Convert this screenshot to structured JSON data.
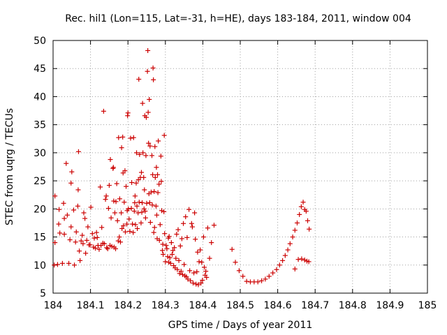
{
  "chart_data": {
    "type": "scatter",
    "title": "Rec. hil1 (Lon=115, Lat=-31, h=HE), days 183-184, 2011, window 004",
    "xlabel": "GPS time / Days of year 2011",
    "ylabel": "STEC from uqrg / TECUs",
    "xlim": [
      184,
      185
    ],
    "ylim": [
      5,
      50
    ],
    "xticks": [
      184,
      184.1,
      184.2,
      184.3,
      184.4,
      184.5,
      184.6,
      184.7,
      184.8,
      184.9,
      185
    ],
    "xtick_labels": [
      "184",
      "184.1",
      "184.2",
      "184.3",
      "184.4",
      "184.5",
      "184.6",
      "184.7",
      "184.8",
      "184.9",
      "185"
    ],
    "yticks": [
      5,
      10,
      15,
      20,
      25,
      30,
      35,
      40,
      45,
      50
    ],
    "ytick_labels": [
      "5",
      "10",
      "15",
      "20",
      "25",
      "30",
      "35",
      "40",
      "45",
      "50"
    ],
    "grid": true,
    "marker": "+",
    "color": "#cc0000",
    "series": [
      {
        "name": "STEC",
        "points": [
          [
            184.003,
            10.0
          ],
          [
            184.005,
            14.0
          ],
          [
            184.005,
            22.3
          ],
          [
            184.012,
            10.1
          ],
          [
            184.015,
            17.3
          ],
          [
            184.016,
            19.9
          ],
          [
            184.018,
            15.7
          ],
          [
            184.025,
            10.3
          ],
          [
            184.028,
            21.0
          ],
          [
            184.03,
            15.5
          ],
          [
            184.03,
            18.3
          ],
          [
            184.035,
            28.1
          ],
          [
            184.038,
            18.9
          ],
          [
            184.042,
            10.3
          ],
          [
            184.045,
            14.5
          ],
          [
            184.048,
            16.8
          ],
          [
            184.048,
            24.6
          ],
          [
            184.05,
            26.6
          ],
          [
            184.055,
            19.8
          ],
          [
            184.057,
            10.0
          ],
          [
            184.06,
            14.1
          ],
          [
            184.062,
            15.9
          ],
          [
            184.066,
            20.5
          ],
          [
            184.067,
            23.4
          ],
          [
            184.068,
            30.2
          ],
          [
            184.07,
            12.5
          ],
          [
            184.072,
            10.8
          ],
          [
            184.075,
            14.3
          ],
          [
            184.078,
            15.3
          ],
          [
            184.08,
            13.8
          ],
          [
            184.082,
            19.3
          ],
          [
            184.085,
            18.3
          ],
          [
            184.087,
            12.1
          ],
          [
            184.09,
            14.4
          ],
          [
            184.093,
            16.8
          ],
          [
            184.096,
            13.6
          ],
          [
            184.099,
            13.6
          ],
          [
            184.101,
            20.3
          ],
          [
            184.105,
            15.6
          ],
          [
            184.108,
            13.2
          ],
          [
            184.11,
            14.8
          ],
          [
            184.113,
            13.0
          ],
          [
            184.116,
            15.8
          ],
          [
            184.118,
            14.9
          ],
          [
            184.12,
            13.5
          ],
          [
            184.123,
            12.8
          ],
          [
            184.126,
            23.9
          ],
          [
            184.128,
            13.5
          ],
          [
            184.13,
            16.7
          ],
          [
            184.133,
            13.9
          ],
          [
            184.135,
            37.4
          ],
          [
            184.137,
            13.8
          ],
          [
            184.14,
            21.7
          ],
          [
            184.142,
            22.3
          ],
          [
            184.143,
            13.1
          ],
          [
            184.146,
            12.9
          ],
          [
            184.148,
            20.1
          ],
          [
            184.15,
            24.2
          ],
          [
            184.152,
            13.5
          ],
          [
            184.153,
            28.8
          ],
          [
            184.155,
            18.4
          ],
          [
            184.157,
            13.3
          ],
          [
            184.16,
            27.2
          ],
          [
            184.161,
            27.4
          ],
          [
            184.162,
            21.4
          ],
          [
            184.163,
            13.2
          ],
          [
            184.165,
            19.3
          ],
          [
            184.167,
            12.9
          ],
          [
            184.168,
            21.3
          ],
          [
            184.17,
            24.5
          ],
          [
            184.172,
            17.9
          ],
          [
            184.174,
            14.3
          ],
          [
            184.175,
            32.7
          ],
          [
            184.177,
            15.0
          ],
          [
            184.178,
            21.8
          ],
          [
            184.18,
            14.1
          ],
          [
            184.182,
            19.3
          ],
          [
            184.183,
            30.9
          ],
          [
            184.184,
            16.5
          ],
          [
            184.186,
            32.8
          ],
          [
            184.187,
            26.4
          ],
          [
            184.188,
            17.0
          ],
          [
            184.19,
            21.2
          ],
          [
            184.192,
            26.8
          ],
          [
            184.193,
            15.9
          ],
          [
            184.195,
            24.0
          ],
          [
            184.197,
            17.3
          ],
          [
            184.198,
            19.7
          ],
          [
            184.199,
            36.6
          ],
          [
            184.2,
            37.1
          ],
          [
            184.201,
            20.0
          ],
          [
            184.203,
            18.2
          ],
          [
            184.205,
            16.0
          ],
          [
            184.207,
            32.6
          ],
          [
            184.209,
            20.1
          ],
          [
            184.21,
            24.7
          ],
          [
            184.212,
            17.3
          ],
          [
            184.214,
            15.8
          ],
          [
            184.215,
            32.7
          ],
          [
            184.217,
            19.6
          ],
          [
            184.218,
            21.1
          ],
          [
            184.219,
            22.3
          ],
          [
            184.22,
            17.2
          ],
          [
            184.222,
            24.6
          ],
          [
            184.223,
            30.0
          ],
          [
            184.224,
            20.5
          ],
          [
            184.225,
            16.5
          ],
          [
            184.227,
            19.3
          ],
          [
            184.228,
            25.2
          ],
          [
            184.229,
            43.1
          ],
          [
            184.23,
            21.2
          ],
          [
            184.231,
            29.7
          ],
          [
            184.233,
            25.6
          ],
          [
            184.235,
            17.5
          ],
          [
            184.236,
            26.5
          ],
          [
            184.237,
            19.4
          ],
          [
            184.238,
            21.1
          ],
          [
            184.239,
            38.8
          ],
          [
            184.24,
            30.0
          ],
          [
            184.242,
            25.6
          ],
          [
            184.243,
            20.0
          ],
          [
            184.244,
            23.4
          ],
          [
            184.245,
            36.6
          ],
          [
            184.246,
            19.6
          ],
          [
            184.247,
            18.4
          ],
          [
            184.248,
            29.5
          ],
          [
            184.249,
            36.3
          ],
          [
            184.25,
            21.0
          ],
          [
            184.252,
            44.5
          ],
          [
            184.253,
            48.2
          ],
          [
            184.254,
            37.2
          ],
          [
            184.255,
            31.7
          ],
          [
            184.256,
            22.7
          ],
          [
            184.257,
            39.5
          ],
          [
            184.258,
            21.1
          ],
          [
            184.259,
            31.2
          ],
          [
            184.26,
            17.6
          ],
          [
            184.262,
            23.0
          ],
          [
            184.264,
            29.5
          ],
          [
            184.265,
            20.7
          ],
          [
            184.266,
            26.1
          ],
          [
            184.267,
            45.1
          ],
          [
            184.268,
            43.0
          ],
          [
            184.269,
            15.8
          ],
          [
            184.27,
            23.1
          ],
          [
            184.271,
            16.7
          ],
          [
            184.272,
            31.1
          ],
          [
            184.273,
            25.6
          ],
          [
            184.275,
            20.5
          ],
          [
            184.276,
            27.4
          ],
          [
            184.277,
            18.9
          ],
          [
            184.278,
            14.7
          ],
          [
            184.279,
            26.1
          ],
          [
            184.28,
            22.9
          ],
          [
            184.281,
            32.1
          ],
          [
            184.283,
            24.4
          ],
          [
            184.284,
            14.4
          ],
          [
            184.286,
            17.2
          ],
          [
            184.288,
            29.4
          ],
          [
            184.289,
            24.9
          ],
          [
            184.29,
            19.7
          ],
          [
            184.292,
            12.6
          ],
          [
            184.293,
            13.7
          ],
          [
            184.294,
            11.9
          ],
          [
            184.296,
            19.5
          ],
          [
            184.297,
            33.1
          ],
          [
            184.298,
            15.6
          ],
          [
            184.3,
            10.6
          ],
          [
            184.302,
            13.5
          ],
          [
            184.304,
            12.9
          ],
          [
            184.306,
            11.5
          ],
          [
            184.308,
            14.8
          ],
          [
            184.309,
            10.5
          ],
          [
            184.31,
            15.1
          ],
          [
            184.312,
            11.3
          ],
          [
            184.314,
            10.3
          ],
          [
            184.316,
            14.0
          ],
          [
            184.318,
            11.9
          ],
          [
            184.32,
            12.6
          ],
          [
            184.322,
            9.9
          ],
          [
            184.324,
            13.1
          ],
          [
            184.326,
            9.5
          ],
          [
            184.328,
            11.2
          ],
          [
            184.33,
            15.5
          ],
          [
            184.332,
            9.2
          ],
          [
            184.334,
            16.3
          ],
          [
            184.336,
            10.8
          ],
          [
            184.338,
            8.5
          ],
          [
            184.34,
            13.4
          ],
          [
            184.342,
            8.9
          ],
          [
            184.344,
            14.7
          ],
          [
            184.346,
            8.3
          ],
          [
            184.348,
            17.4
          ],
          [
            184.35,
            10.1
          ],
          [
            184.352,
            8.1
          ],
          [
            184.354,
            18.6
          ],
          [
            184.356,
            7.9
          ],
          [
            184.358,
            14.9
          ],
          [
            184.36,
            7.5
          ],
          [
            184.363,
            19.9
          ],
          [
            184.365,
            9.0
          ],
          [
            184.367,
            7.2
          ],
          [
            184.37,
            17.4
          ],
          [
            184.372,
            16.8
          ],
          [
            184.374,
            6.8
          ],
          [
            184.376,
            8.6
          ],
          [
            184.378,
            19.3
          ],
          [
            184.38,
            14.6
          ],
          [
            184.382,
            6.6
          ],
          [
            184.384,
            8.8
          ],
          [
            184.386,
            12.3
          ],
          [
            184.388,
            6.5
          ],
          [
            184.39,
            10.6
          ],
          [
            184.393,
            12.7
          ],
          [
            184.395,
            6.8
          ],
          [
            184.397,
            10.5
          ],
          [
            184.399,
            7.3
          ],
          [
            184.402,
            15.0
          ],
          [
            184.404,
            9.6
          ],
          [
            184.406,
            8.2
          ],
          [
            184.408,
            8.9
          ],
          [
            184.41,
            7.8
          ],
          [
            184.413,
            16.6
          ],
          [
            184.418,
            11.2
          ],
          [
            184.423,
            14.0
          ],
          [
            184.43,
            17.1
          ],
          [
            184.478,
            12.8
          ],
          [
            184.487,
            10.5
          ],
          [
            184.497,
            9.0
          ],
          [
            184.507,
            8.0
          ],
          [
            184.517,
            7.1
          ],
          [
            184.527,
            7.0
          ],
          [
            184.537,
            7.0
          ],
          [
            184.547,
            7.0
          ],
          [
            184.557,
            7.2
          ],
          [
            184.567,
            7.5
          ],
          [
            184.577,
            8.0
          ],
          [
            184.587,
            8.6
          ],
          [
            184.597,
            9.2
          ],
          [
            184.605,
            10.0
          ],
          [
            184.613,
            10.8
          ],
          [
            184.62,
            11.7
          ],
          [
            184.627,
            12.7
          ],
          [
            184.633,
            13.8
          ],
          [
            184.64,
            15.0
          ],
          [
            184.646,
            16.2
          ],
          [
            184.652,
            17.5
          ],
          [
            184.658,
            19.0
          ],
          [
            184.663,
            20.4
          ],
          [
            184.668,
            21.2
          ],
          [
            184.672,
            19.9
          ],
          [
            184.676,
            19.6
          ],
          [
            184.68,
            17.9
          ],
          [
            184.684,
            16.4
          ],
          [
            184.646,
            9.3
          ],
          [
            184.655,
            11.0
          ],
          [
            184.664,
            11.1
          ],
          [
            184.672,
            10.9
          ],
          [
            184.678,
            10.7
          ],
          [
            184.683,
            10.6
          ]
        ]
      }
    ]
  }
}
